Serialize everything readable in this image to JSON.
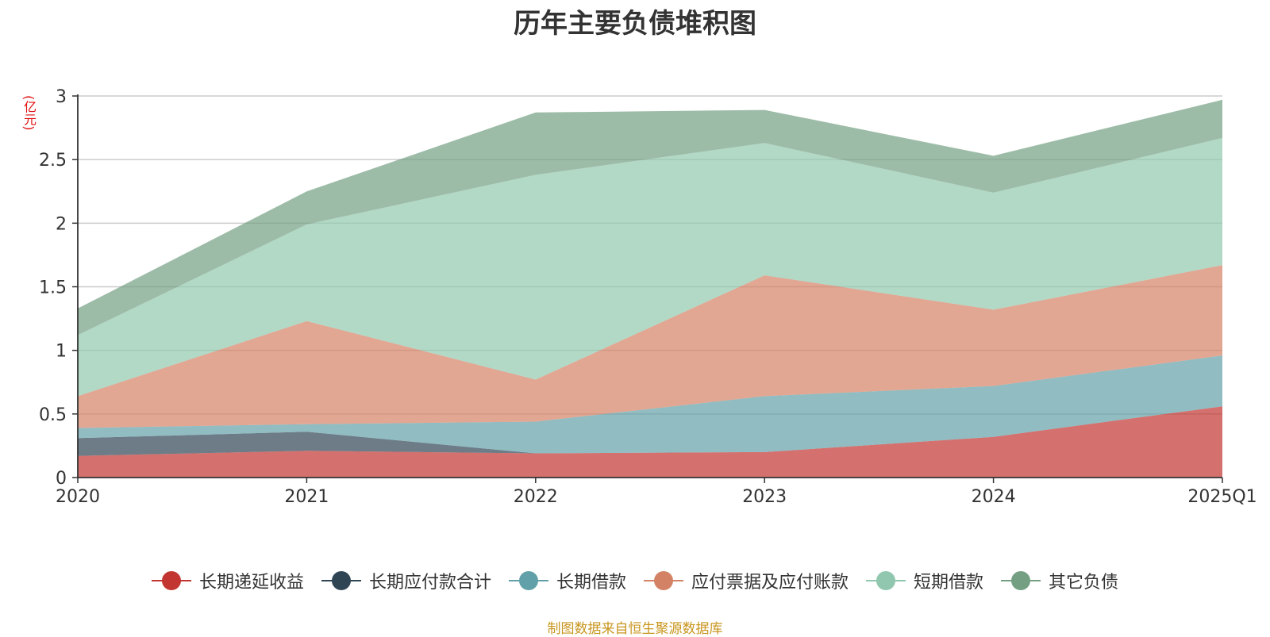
{
  "chart_data": {
    "type": "area",
    "title": "历年主要负债堆积图",
    "unit_label": "(亿元)",
    "stacked": true,
    "categories": [
      "2020",
      "2021",
      "2022",
      "2023",
      "2024",
      "2025Q1"
    ],
    "ylim": [
      0,
      3
    ],
    "yticks": [
      "0",
      "0.5",
      "1",
      "1.5",
      "2",
      "2.5",
      "3"
    ],
    "grid": true,
    "legend_position": "bottom",
    "series": [
      {
        "name": "长期递延收益",
        "color": "#c23531",
        "values": [
          0.17,
          0.21,
          0.19,
          0.2,
          0.32,
          0.56
        ]
      },
      {
        "name": "长期应付款合计",
        "color": "#2f4554",
        "values": [
          0.14,
          0.15,
          0.0,
          0.0,
          0.0,
          0.0
        ]
      },
      {
        "name": "长期借款",
        "color": "#61a0a8",
        "values": [
          0.08,
          0.06,
          0.25,
          0.44,
          0.4,
          0.4
        ]
      },
      {
        "name": "应付票据及应付账款",
        "color": "#d48265",
        "values": [
          0.25,
          0.81,
          0.33,
          0.95,
          0.6,
          0.71
        ]
      },
      {
        "name": "短期借款",
        "color": "#91c7ae",
        "values": [
          0.48,
          0.76,
          1.61,
          1.04,
          0.92,
          1.0
        ]
      },
      {
        "name": "其它负债",
        "color": "#749f83",
        "values": [
          0.21,
          0.26,
          0.49,
          0.26,
          0.29,
          0.3
        ]
      }
    ]
  },
  "source_note": "制图数据来自恒生聚源数据库"
}
